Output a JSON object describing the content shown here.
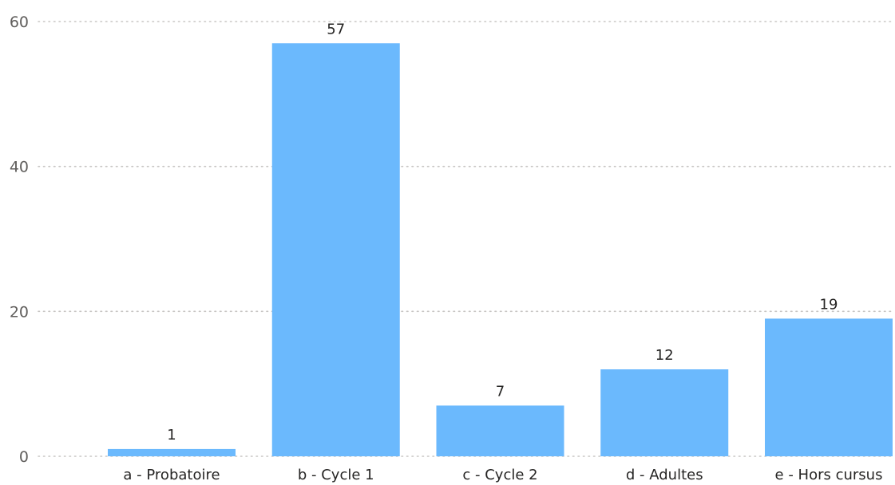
{
  "chart_data": {
    "type": "bar",
    "title": "",
    "xlabel": "",
    "ylabel": "",
    "categories": [
      "a - Probatoire",
      "b - Cycle 1",
      "c - Cycle 2",
      "d - Adultes",
      "e - Hors cursus"
    ],
    "values": [
      1,
      57,
      7,
      12,
      19
    ],
    "ylim": [
      0,
      60
    ],
    "yticks": [
      0,
      20,
      40,
      60
    ],
    "grid": true,
    "legend": "none",
    "bar_color": "#6bb9fd"
  }
}
